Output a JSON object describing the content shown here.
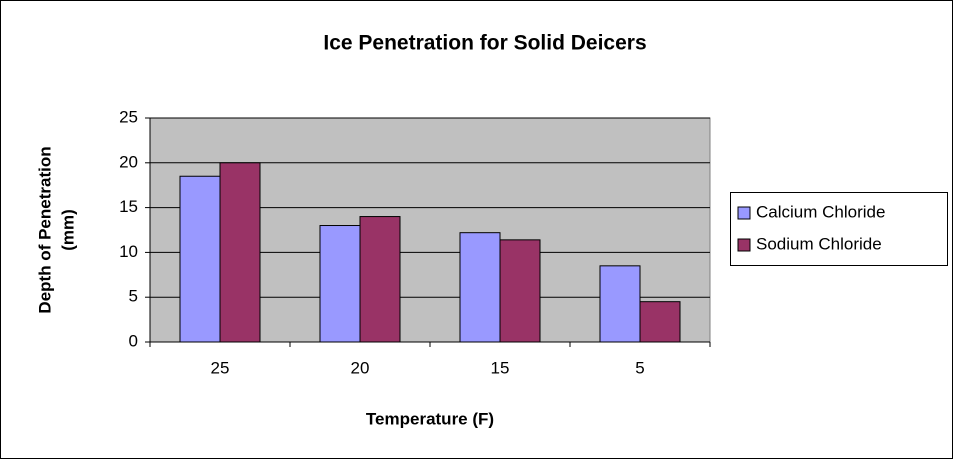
{
  "chart_data": {
    "type": "bar",
    "title": "Ice Penetration for Solid Deicers",
    "xlabel": "Temperature (F)",
    "ylabel": [
      "Depth of Penetration",
      "(mm)"
    ],
    "categories": [
      "25",
      "20",
      "15",
      "5"
    ],
    "series": [
      {
        "name": "Calcium Chloride",
        "color": "#9999ff",
        "values": [
          18.5,
          13,
          12.2,
          8.5
        ]
      },
      {
        "name": "Sodium Chloride",
        "color": "#993366",
        "values": [
          20,
          14,
          11.4,
          4.5
        ]
      }
    ],
    "ylim": [
      0,
      25
    ],
    "yticks": [
      0,
      5,
      10,
      15,
      20,
      25
    ],
    "grid": true,
    "legend": "right"
  }
}
